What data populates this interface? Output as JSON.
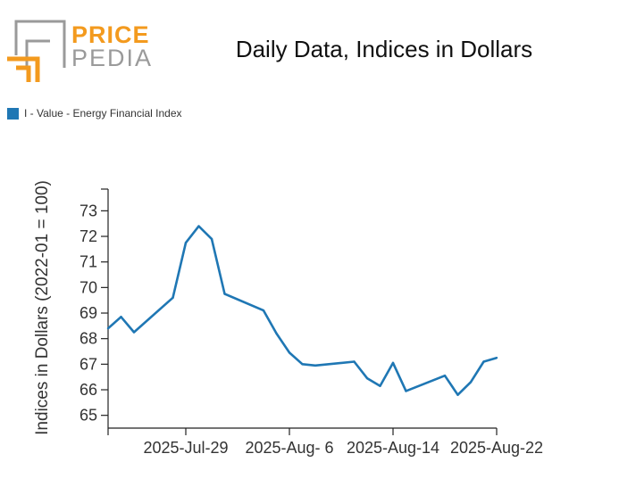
{
  "logo": {
    "line1": "PRICE",
    "line2": "PEDIA",
    "colors": {
      "orange": "#f39a1e",
      "gray": "#9a9a9a"
    }
  },
  "chart_data": {
    "type": "line",
    "title": "Daily Data, Indices in Dollars",
    "xlabel": "",
    "ylabel": "Indices in Dollars (2022-01 = 100)",
    "legend": "top-left",
    "grid": false,
    "color": "#1f77b4",
    "x_tick_labels": [
      "2025-Jul-29",
      "2025-Aug- 6",
      "2025-Aug-14",
      "2025-Aug-22"
    ],
    "x_tick_dates": [
      "2025-07-29",
      "2025-08-06",
      "2025-08-14",
      "2025-08-22"
    ],
    "y_ticks": [
      65,
      66,
      67,
      68,
      69,
      70,
      71,
      72,
      73
    ],
    "ylim": [
      64.5,
      73.85
    ],
    "xlim": [
      "2025-07-23",
      "2025-08-22"
    ],
    "series": [
      {
        "name": "I - Value - Energy Financial Index",
        "x": [
          "2025-07-23",
          "2025-07-24",
          "2025-07-25",
          "2025-07-28",
          "2025-07-29",
          "2025-07-30",
          "2025-07-31",
          "2025-08-01",
          "2025-08-04",
          "2025-08-05",
          "2025-08-06",
          "2025-08-07",
          "2025-08-08",
          "2025-08-11",
          "2025-08-12",
          "2025-08-13",
          "2025-08-14",
          "2025-08-15",
          "2025-08-18",
          "2025-08-19",
          "2025-08-20",
          "2025-08-21",
          "2025-08-22"
        ],
        "values": [
          68.4,
          68.85,
          68.25,
          69.6,
          71.75,
          72.4,
          71.9,
          69.75,
          69.1,
          68.2,
          67.45,
          67.0,
          66.95,
          67.1,
          66.45,
          66.15,
          67.05,
          65.95,
          66.55,
          65.8,
          66.3,
          67.1,
          67.25
        ]
      }
    ]
  }
}
